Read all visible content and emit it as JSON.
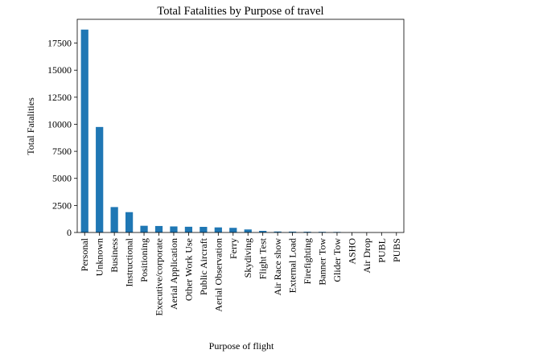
{
  "chart_data": {
    "type": "bar",
    "title": "Total Fatalities by Purpose of travel",
    "xlabel": "Purpose of flight",
    "ylabel": "Total Fatalities",
    "categories": [
      "Personal",
      "Unknown",
      "Business",
      "Instructional",
      "Positioning",
      "Executive/corporate",
      "Aerial Application",
      "Other Work Use",
      "Public Aircraft",
      "Aerial Observation",
      "Ferry",
      "Skydiving",
      "Flight Test",
      "Air Race show",
      "External Load",
      "Firefighting",
      "Banner Tow",
      "Glider Tow",
      "ASHO",
      "Air Drop",
      "PUBL",
      "PUBS"
    ],
    "values": [
      18750,
      9750,
      2350,
      1880,
      620,
      600,
      560,
      530,
      520,
      470,
      430,
      280,
      150,
      90,
      80,
      70,
      60,
      50,
      10,
      5,
      2,
      1
    ],
    "yticks": [
      "0",
      "2500",
      "5000",
      "7500",
      "10000",
      "12500",
      "15000",
      "17500"
    ],
    "ylim": [
      0,
      19700
    ],
    "grid": false,
    "legend": "none",
    "bar_color": "#1f77b4"
  }
}
